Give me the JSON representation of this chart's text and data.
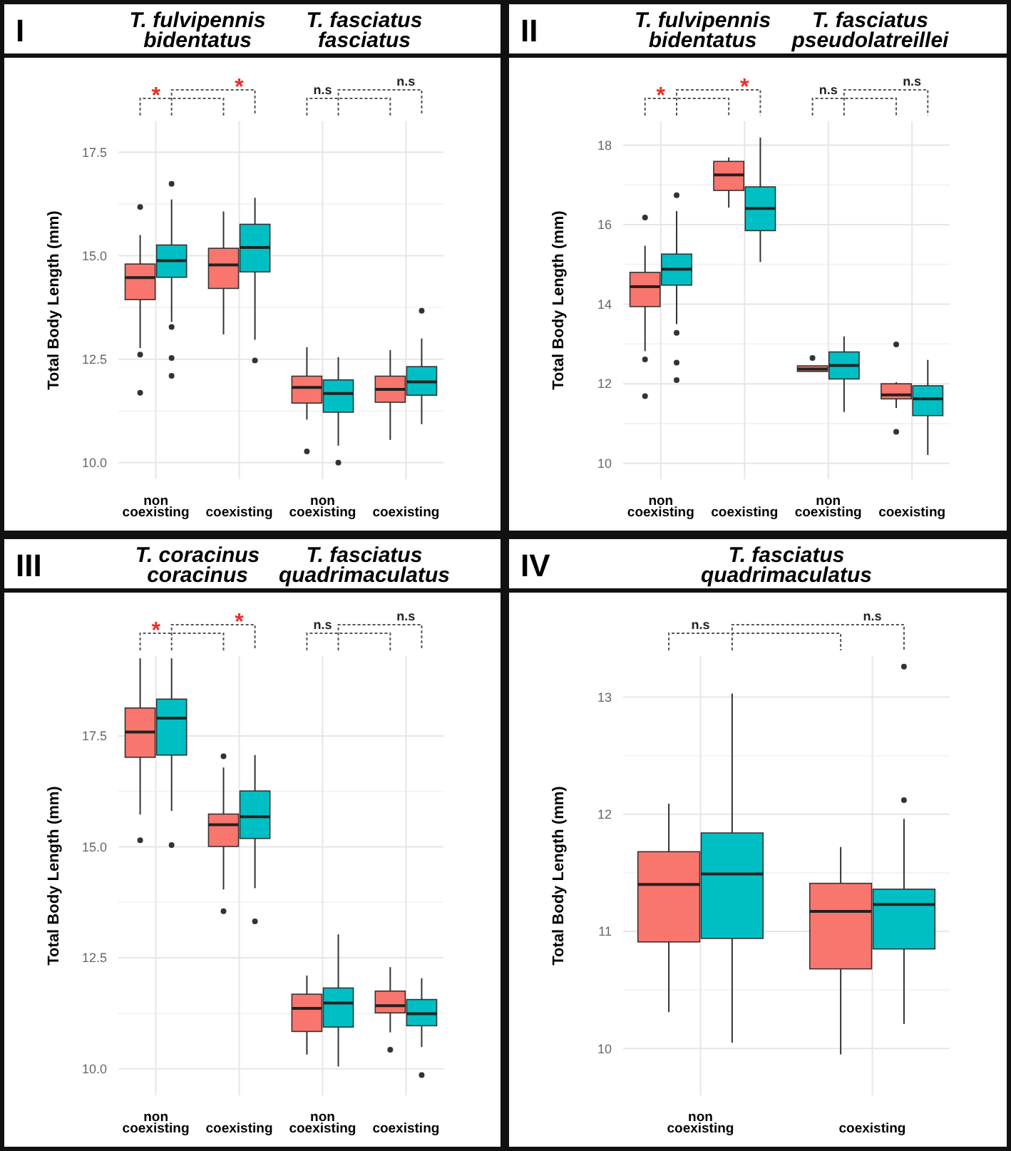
{
  "chart_data": [
    {
      "type": "box",
      "title": "I",
      "ylabel": "Total Body Length (mm)",
      "annotations": [
        "T. fulvipennis bidentatus",
        "T. fasciatus fasciatus",
        "*",
        "*",
        "n.s",
        "n.s"
      ],
      "categories": [
        "non coexisting",
        "coexisting",
        "non coexisting",
        "coexisting"
      ],
      "ylim": [
        9.6,
        18.25
      ],
      "yticks": [
        {
          "value": 10,
          "label": "10.0"
        },
        {
          "value": 12.5,
          "label": "12.5"
        },
        {
          "value": 15,
          "label": "15.0"
        },
        {
          "value": 17.5,
          "label": "17.5"
        }
      ],
      "grid": true,
      "series": [
        {
          "color": "#f8766d",
          "boxes": [
            {
              "low": 12.77,
              "q1": 13.94,
              "median": 14.47,
              "q3": 14.8,
              "high": 15.5,
              "outliers": [
                16.18,
                12.61,
                11.69
              ]
            },
            {
              "low": 13.1,
              "q1": 14.21,
              "median": 14.78,
              "q3": 15.18,
              "high": 16.07
            },
            {
              "low": 11.04,
              "q1": 11.44,
              "median": 11.82,
              "q3": 12.09,
              "high": 12.79,
              "outliers": [
                10.27
              ]
            },
            {
              "low": 10.55,
              "q1": 11.46,
              "median": 11.77,
              "q3": 12.09,
              "high": 12.72
            }
          ]
        },
        {
          "color": "#00bfc4",
          "boxes": [
            {
              "low": 13.4,
              "q1": 14.48,
              "median": 14.88,
              "q3": 15.26,
              "high": 16.36,
              "outliers": [
                16.74,
                13.28,
                12.53,
                12.1
              ]
            },
            {
              "low": 12.97,
              "q1": 14.61,
              "median": 15.2,
              "q3": 15.76,
              "high": 16.4,
              "outliers": [
                12.47
              ]
            },
            {
              "low": 10.41,
              "q1": 11.22,
              "median": 11.67,
              "q3": 12.0,
              "high": 12.55,
              "outliers": [
                10.0
              ]
            },
            {
              "low": 10.93,
              "q1": 11.63,
              "median": 11.95,
              "q3": 12.32,
              "high": 13.0,
              "outliers": [
                13.67
              ]
            }
          ]
        }
      ]
    },
    {
      "type": "box",
      "title": "II",
      "ylabel": "Total Body Length (mm)",
      "annotations": [
        "T. fulvipennis bidentatus",
        "T. fasciatus pseudolatreillei",
        "*",
        "*",
        "n.s",
        "n.s"
      ],
      "categories": [
        "non coexisting",
        "coexisting",
        "non coexisting",
        "coexisting"
      ],
      "ylim": [
        9.6,
        18.6
      ],
      "yticks": [
        10,
        12,
        14,
        16,
        18
      ],
      "grid": true,
      "series": [
        {
          "color": "#f8766d",
          "boxes": [
            {
              "low": 12.82,
              "q1": 13.94,
              "median": 14.44,
              "q3": 14.8,
              "high": 15.47,
              "outliers": [
                16.18,
                12.61,
                11.69
              ]
            },
            {
              "low": 16.43,
              "q1": 16.86,
              "median": 17.25,
              "q3": 17.59,
              "high": 17.69
            },
            {
              "low": 12.31,
              "q1": 12.31,
              "median": 12.37,
              "q3": 12.45,
              "high": 12.45,
              "outliers": [
                12.65
              ]
            },
            {
              "low": 11.39,
              "q1": 11.62,
              "median": 11.72,
              "q3": 12.0,
              "high": 12.04,
              "outliers": [
                12.99,
                10.79
              ]
            }
          ]
        },
        {
          "color": "#00bfc4",
          "boxes": [
            {
              "low": 13.5,
              "q1": 14.48,
              "median": 14.88,
              "q3": 15.26,
              "high": 16.34,
              "outliers": [
                16.74,
                13.28,
                12.53,
                12.09
              ]
            },
            {
              "low": 15.06,
              "q1": 15.85,
              "median": 16.41,
              "q3": 16.95,
              "high": 18.19
            },
            {
              "low": 11.29,
              "q1": 12.12,
              "median": 12.46,
              "q3": 12.8,
              "high": 13.19
            },
            {
              "low": 10.21,
              "q1": 11.2,
              "median": 11.62,
              "q3": 11.95,
              "high": 12.6
            }
          ]
        }
      ]
    },
    {
      "type": "box",
      "title": "III",
      "ylabel": "Total Body Length (mm)",
      "annotations": [
        "T. coracinus coracinus",
        "T. fasciatus quadrimaculatus",
        "*",
        "*",
        "n.s",
        "n.s"
      ],
      "categories": [
        "non coexisting",
        "coexisting",
        "non coexisting",
        "coexisting"
      ],
      "ylim": [
        9.4,
        19.3
      ],
      "yticks": [
        {
          "value": 10,
          "label": "10.0"
        },
        {
          "value": 12.5,
          "label": "12.5"
        },
        {
          "value": 15,
          "label": "15.0"
        },
        {
          "value": 17.5,
          "label": "17.5"
        }
      ],
      "grid": true,
      "series": [
        {
          "color": "#f8766d",
          "boxes": [
            {
              "low": 15.73,
              "q1": 17.02,
              "median": 17.59,
              "q3": 18.13,
              "high": 19.25,
              "outliers": [
                15.15
              ]
            },
            {
              "low": 14.04,
              "q1": 15.01,
              "median": 15.5,
              "q3": 15.74,
              "high": 16.79,
              "outliers": [
                17.04,
                13.55
              ]
            },
            {
              "low": 10.32,
              "q1": 10.84,
              "median": 11.36,
              "q3": 11.68,
              "high": 12.1
            },
            {
              "low": 10.82,
              "q1": 11.26,
              "median": 11.42,
              "q3": 11.75,
              "high": 12.29,
              "outliers": [
                10.43
              ]
            }
          ]
        },
        {
          "color": "#00bfc4",
          "boxes": [
            {
              "low": 15.81,
              "q1": 17.07,
              "median": 17.9,
              "q3": 18.33,
              "high": 19.25,
              "outliers": [
                15.04
              ]
            },
            {
              "low": 14.07,
              "q1": 15.19,
              "median": 15.68,
              "q3": 16.26,
              "high": 17.07,
              "outliers": [
                13.32
              ]
            },
            {
              "low": 10.05,
              "q1": 10.94,
              "median": 11.48,
              "q3": 11.82,
              "high": 13.03
            },
            {
              "low": 10.49,
              "q1": 10.97,
              "median": 11.24,
              "q3": 11.56,
              "high": 12.04,
              "outliers": [
                9.86
              ]
            }
          ]
        }
      ]
    },
    {
      "type": "box",
      "title": "IV",
      "ylabel": "Total Body Length (mm)",
      "annotations": [
        "T. fasciatus quadrimaculatus",
        "n.s",
        "n.s"
      ],
      "categories": [
        "non coexisting",
        "coexisting"
      ],
      "ylim": [
        9.6,
        13.35
      ],
      "yticks": [
        10,
        11,
        12,
        13
      ],
      "grid": true,
      "series": [
        {
          "color": "#f8766d",
          "boxes": [
            {
              "low": 10.31,
              "q1": 10.91,
              "median": 11.4,
              "q3": 11.68,
              "high": 12.09
            },
            {
              "low": 9.95,
              "q1": 10.68,
              "median": 11.17,
              "q3": 11.41,
              "high": 11.72
            }
          ]
        },
        {
          "color": "#00bfc4",
          "boxes": [
            {
              "low": 10.05,
              "q1": 10.94,
              "median": 11.49,
              "q3": 11.84,
              "high": 13.03
            },
            {
              "low": 10.21,
              "q1": 10.85,
              "median": 11.23,
              "q3": 11.36,
              "high": 11.96,
              "outliers": [
                12.12,
                13.26
              ]
            }
          ]
        }
      ]
    }
  ]
}
